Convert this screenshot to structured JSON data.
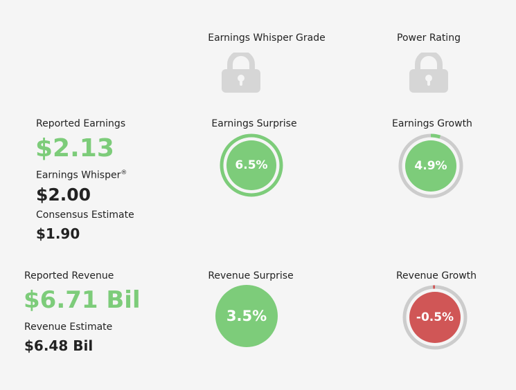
{
  "grades": {
    "whisper_grade_label": "Earnings Whisper Grade",
    "power_rating_label": "Power Rating",
    "lock_icon": "lock-icon"
  },
  "earnings": {
    "reported_label": "Reported Earnings",
    "reported_value": "$2.13",
    "whisper_label": "Earnings Whisper",
    "whisper_mark": "®",
    "whisper_value": "$2.00",
    "consensus_label": "Consensus Estimate",
    "consensus_value": "$1.90",
    "surprise_label": "Earnings Surprise",
    "surprise_value": "6.5%",
    "growth_label": "Earnings Growth",
    "growth_value": "4.9%",
    "growth_fraction": 0.049
  },
  "revenue": {
    "reported_label": "Reported Revenue",
    "reported_value": "$6.71 Bil",
    "estimate_label": "Revenue Estimate",
    "estimate_value": "$6.48 Bil",
    "surprise_label": "Revenue Surprise",
    "surprise_value": "3.5%",
    "growth_label": "Revenue Growth",
    "growth_value": "-0.5%",
    "growth_fraction": -0.005
  },
  "colors": {
    "positive": "#7dcc7a",
    "negative": "#d05656",
    "track": "#cccccc",
    "lock": "#d6d6d6",
    "background": "#f5f5f5"
  }
}
